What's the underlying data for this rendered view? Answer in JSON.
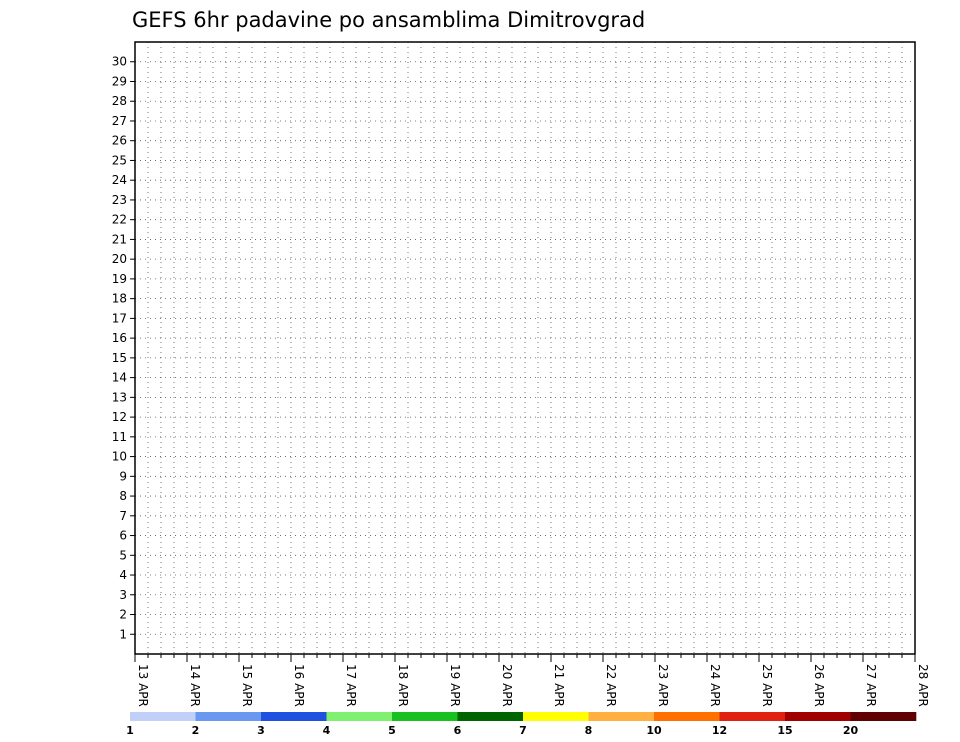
{
  "chart_data": {
    "type": "heatmap",
    "title": "GEFS 6hr padavine po ansamblima Dimitrovgrad",
    "xlabel": "",
    "ylabel": "",
    "x_ticks": [
      "13 APR",
      "14 APR",
      "15 APR",
      "16 APR",
      "17 APR",
      "18 APR",
      "19 APR",
      "20 APR",
      "21 APR",
      "22 APR",
      "23 APR",
      "24 APR",
      "25 APR",
      "26 APR",
      "27 APR",
      "28 APR"
    ],
    "x_steps": 60,
    "steps_per_day": 4,
    "y_ticks": [
      "1",
      "2",
      "3",
      "4",
      "5",
      "6",
      "7",
      "8",
      "9",
      "10",
      "11",
      "12",
      "13",
      "14",
      "15",
      "16",
      "17",
      "18",
      "19",
      "20",
      "21",
      "22",
      "23",
      "24",
      "25",
      "26",
      "27",
      "28",
      "29",
      "30"
    ],
    "colorbar": {
      "labels": [
        "1",
        "2",
        "3",
        "4",
        "5",
        "6",
        "7",
        "8",
        "10",
        "12",
        "15",
        "20"
      ],
      "colors": [
        "#c0d0f8",
        "#6a98f0",
        "#2050e0",
        "#80f070",
        "#18c020",
        "#006400",
        "#ffff00",
        "#ffb040",
        "#ff7000",
        "#e02010",
        "#a00000",
        "#600000"
      ]
    },
    "legend_position": "bottom",
    "grid": true,
    "rows": [
      {
        "member": 1,
        "values": [
          0,
          0,
          0,
          0,
          0,
          0,
          0,
          0,
          0,
          0,
          0,
          0,
          0,
          0,
          0,
          0,
          0,
          0,
          0,
          0,
          0,
          0,
          0,
          0,
          0,
          0,
          0,
          0,
          0,
          0,
          0,
          0,
          0,
          0,
          0,
          0,
          0,
          0,
          0,
          0,
          0,
          0,
          0,
          0,
          0,
          0,
          0,
          0,
          0,
          0,
          0,
          0,
          0,
          0,
          0,
          0,
          0,
          0,
          0,
          0
        ]
      },
      {
        "member": 2,
        "values": [
          0,
          0,
          0,
          0,
          0,
          0,
          0,
          0,
          0,
          0,
          0,
          0,
          0,
          0,
          0,
          0,
          0,
          0,
          0,
          0,
          0,
          0,
          0,
          0,
          0,
          0,
          0,
          0,
          0,
          0,
          0,
          0,
          0,
          0,
          0,
          0,
          0,
          0,
          0,
          0,
          0,
          0,
          0,
          0,
          0,
          0,
          0,
          0,
          0,
          0,
          0,
          0,
          0,
          0,
          0,
          0,
          0,
          0,
          0,
          0
        ]
      }
    ]
  }
}
